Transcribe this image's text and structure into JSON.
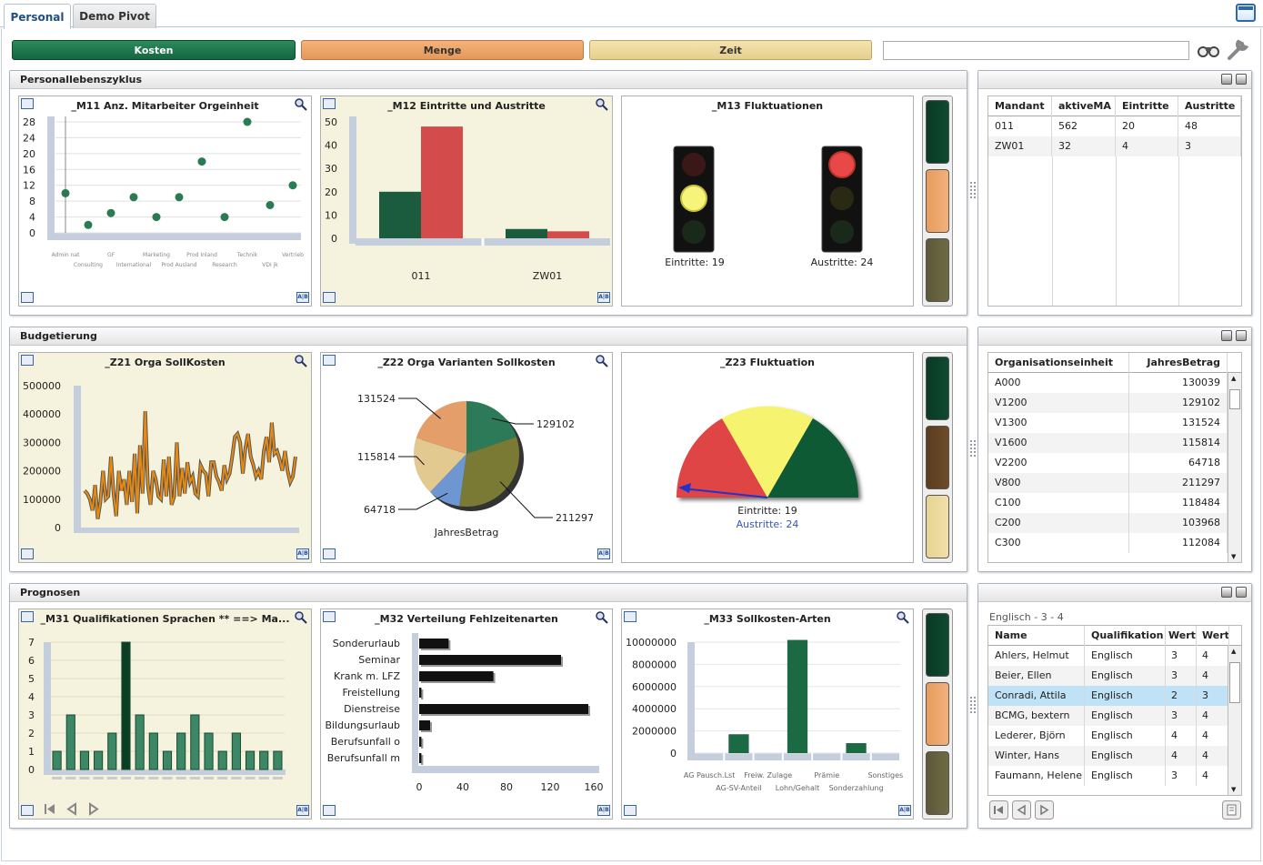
{
  "tabs": [
    {
      "label": "Personal"
    },
    {
      "label": "Demo Pivot"
    }
  ],
  "toolbar": {
    "kosten": "Kosten",
    "menge": "Menge",
    "zeit": "Zeit",
    "search_value": ""
  },
  "colors": {
    "green": "#1c6a44",
    "orange": "#e8a265",
    "sand": "#ead99a",
    "dark_green": "#0b3d26",
    "red": "#d84c4c"
  },
  "icons": {
    "binoculars": "binoculars-icon",
    "wrench": "wrench-icon",
    "window": "window-icon"
  },
  "sections": {
    "s1": {
      "title": "Personallebenszyklus"
    },
    "s2": {
      "title": "Budgetierung"
    },
    "s3": {
      "title": "Prognosen"
    }
  },
  "m11": {
    "title": "_M11 Anz. Mitarbeiter Orgeinheit"
  },
  "m12": {
    "title": "_M12 Eintritte und Austritte"
  },
  "m13": {
    "title": "_M13 Fluktuationen",
    "left_label": "Eintritte: 19",
    "right_label": "Austritte: 24"
  },
  "z21": {
    "title": "_Z21 Orga SollKosten"
  },
  "z22": {
    "title": "_Z22 Orga Varianten Sollkosten"
  },
  "z23": {
    "title": "_Z23 Fluktuation",
    "label1": "Eintritte: 19",
    "label2": "Austritte: 24"
  },
  "m31": {
    "title": "_M31 Qualifikationen Sprachen ** ==> Ma..."
  },
  "m32": {
    "title": "_M32 Verteilung Fehlzeitenarten"
  },
  "m33": {
    "title": "_M33 Sollkosten-Arten"
  },
  "chart_data": [
    {
      "id": "m11",
      "type": "scatter",
      "title": "_M11 Anz. Mitarbeiter Orgeinheit",
      "categories": [
        "Admin nat",
        "Consulting",
        "GF",
        "International",
        "Marketing",
        "Prod Ausland",
        "Prod Inland",
        "Research",
        "Technik",
        "VDI jk",
        "Vertrieb"
      ],
      "values": [
        10,
        2,
        5,
        9,
        4,
        9,
        18,
        4,
        28,
        7,
        12
      ],
      "yticks": [
        "0",
        "4",
        "8",
        "12",
        "16",
        "20",
        "24",
        "28"
      ],
      "ylim": [
        0,
        28
      ]
    },
    {
      "id": "m12",
      "type": "bar",
      "title": "_M12 Eintritte und Austritte",
      "categories": [
        "011",
        "ZW01"
      ],
      "series": [
        {
          "values": [
            20,
            4
          ]
        },
        {
          "values": [
            48,
            3
          ]
        }
      ],
      "yticks": [
        "0",
        "10",
        "20",
        "30",
        "40",
        "50"
      ],
      "ylim": [
        0,
        50
      ]
    },
    {
      "id": "z21",
      "type": "line",
      "title": "_Z21 Orga SollKosten",
      "yticks": [
        "0",
        "100000",
        "200000",
        "300000",
        "400000",
        "500000"
      ],
      "ylim": [
        0,
        500000
      ],
      "values": [
        130000,
        120000,
        100000,
        60000,
        150000,
        30000,
        90000,
        200000,
        100000,
        110000,
        250000,
        120000,
        40000,
        200000,
        130000,
        170000,
        80000,
        200000,
        90000,
        260000,
        50000,
        290000,
        120000,
        410000,
        150000,
        80000,
        200000,
        170000,
        110000,
        100000,
        240000,
        110000,
        250000,
        80000,
        110000,
        300000,
        110000,
        210000,
        120000,
        230000,
        160000,
        180000,
        120000,
        110000,
        220000,
        200000,
        190000,
        110000,
        230000,
        230000,
        180000,
        160000,
        130000,
        220000,
        170000,
        190000,
        250000,
        320000,
        330000,
        300000,
        190000,
        280000,
        330000,
        250000,
        220000,
        180000,
        200000,
        170000,
        270000,
        320000,
        230000,
        370000,
        260000,
        270000,
        240000,
        200000,
        270000,
        200000,
        160000,
        180000,
        250000
      ]
    },
    {
      "id": "z22",
      "type": "pie",
      "title": "_Z22 Orga Varianten Sollkosten",
      "xlabel": "JahresBetrag",
      "slices": [
        {
          "label": "129102",
          "value": 129102
        },
        {
          "label": "211297",
          "value": 211297
        },
        {
          "label": "64718",
          "value": 64718
        },
        {
          "label": "115814",
          "value": 115814
        },
        {
          "label": "131524",
          "value": 131524
        }
      ]
    },
    {
      "id": "m31",
      "type": "bar",
      "title": "_M31 Qualifikationen Sprachen ** ==> Ma...",
      "values": [
        1,
        3,
        1,
        1,
        2,
        7,
        3,
        2,
        1,
        2,
        3,
        2,
        1,
        2,
        1,
        1,
        1
      ],
      "yticks": [
        "0",
        "1",
        "2",
        "3",
        "4",
        "5",
        "6",
        "7"
      ],
      "ylim": [
        0,
        7
      ]
    },
    {
      "id": "m32",
      "type": "bar",
      "title": "_M32 Verteilung Fehlzeitenarten",
      "categories": [
        "Sonderurlaub",
        "Seminar",
        "Krank m. LFZ",
        "Freistellung",
        "Dienstreise",
        "Bildungsurlaub",
        "Berufsunfall o",
        "Berufsunfall m"
      ],
      "values": [
        27,
        130,
        68,
        2,
        155,
        10,
        2,
        2
      ],
      "xticks": [
        "0",
        "40",
        "80",
        "120",
        "160"
      ],
      "xlim": [
        0,
        160
      ]
    },
    {
      "id": "m33",
      "type": "bar",
      "title": "_M33 Sollkosten-Arten",
      "categories": [
        "AG Pausch.Lst",
        "AG-SV-Anteil",
        "Freiw. Zulage",
        "Lohn/Gehalt",
        "Prämie",
        "Sonderzahlung",
        "Sonstiges"
      ],
      "values": [
        0,
        1700000,
        0,
        10200000,
        0,
        900000,
        0
      ],
      "yticks": [
        "0",
        "2000000",
        "4000000",
        "6000000",
        "8000000",
        "10000000"
      ],
      "ylim": [
        0,
        10000000
      ]
    }
  ],
  "grid1": {
    "headers": [
      "Mandant",
      "aktiveMA",
      "Eintritte",
      "Austritte"
    ],
    "rows": [
      [
        "011",
        "562",
        "20",
        "48"
      ],
      [
        "ZW01",
        "32",
        "4",
        "3"
      ]
    ]
  },
  "grid2": {
    "headers": [
      "Organisationseinheit",
      "JahresBetrag"
    ],
    "rows": [
      [
        "A000",
        "130039"
      ],
      [
        "V1200",
        "129102"
      ],
      [
        "V1300",
        "131524"
      ],
      [
        "V1600",
        "115814"
      ],
      [
        "V2200",
        "64718"
      ],
      [
        "V800",
        "211297"
      ],
      [
        "C100",
        "118484"
      ],
      [
        "C200",
        "103968"
      ],
      [
        "C300",
        "112084"
      ]
    ]
  },
  "grid3": {
    "caption": "Englisch - 3 - 4",
    "headers": [
      "Name",
      "Qualifikation",
      "Wert",
      "Wert"
    ],
    "rows": [
      [
        "Ahlers, Helmut",
        "Englisch",
        "3",
        "4"
      ],
      [
        "Beier, Ellen",
        "Englisch",
        "3",
        "4"
      ],
      [
        "Conradi, Attila",
        "Englisch",
        "2",
        "3"
      ],
      [
        "BCMG, bextern",
        "Englisch",
        "3",
        "4"
      ],
      [
        "Lederer, Björn",
        "Englisch",
        "4",
        "4"
      ],
      [
        "Winter, Hans",
        "Englisch",
        "4",
        "4"
      ],
      [
        "Faumann, Helene",
        "Englisch",
        "3",
        "4"
      ]
    ]
  }
}
